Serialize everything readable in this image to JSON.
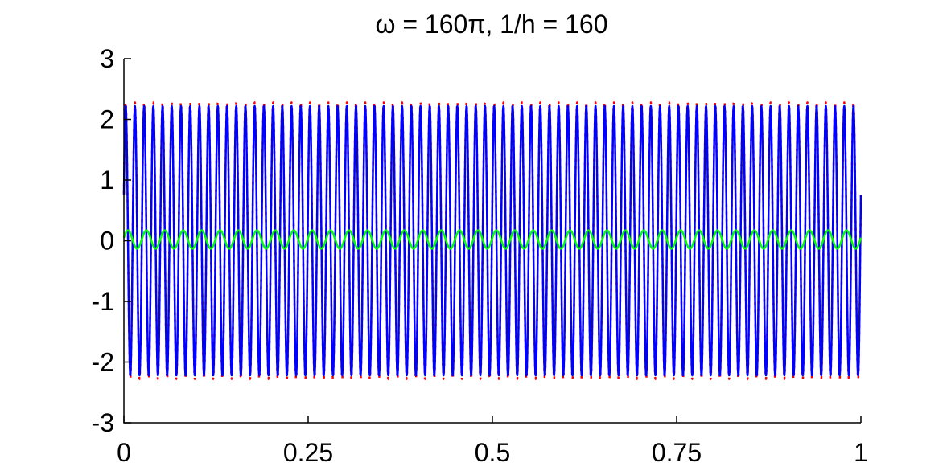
{
  "chart_data": {
    "type": "line",
    "title": "ω = 160π, 1/h = 160",
    "xlabel": "",
    "ylabel": "",
    "xlim": [
      0,
      1
    ],
    "ylim": [
      -3,
      3
    ],
    "xticks": [
      0,
      0.25,
      0.5,
      0.75,
      1
    ],
    "xtick_labels": [
      "0",
      "0.25",
      "0.5",
      "0.75",
      "1"
    ],
    "yticks": [
      -3,
      -2,
      -1,
      0,
      1,
      2,
      3
    ],
    "ytick_labels": [
      "-3",
      "-2",
      "-1",
      "0",
      "1",
      "2",
      "3"
    ],
    "grid": false,
    "legend": "none",
    "series": [
      {
        "kind": "oscillation",
        "color": "#ff0000",
        "style": "dotted",
        "amplitude": 2.28,
        "frequency": 80,
        "phase": 0.35,
        "offset": 0.0
      },
      {
        "kind": "oscillation",
        "color": "#0000ff",
        "style": "solid",
        "amplitude": 2.22,
        "frequency": 80,
        "phase": 0.35,
        "offset": 0.0
      },
      {
        "kind": "oscillation",
        "color": "#00ff00",
        "style": "solid",
        "amplitude": 0.15,
        "frequency": 40,
        "phase": 0.2,
        "offset": 0.02
      }
    ]
  }
}
